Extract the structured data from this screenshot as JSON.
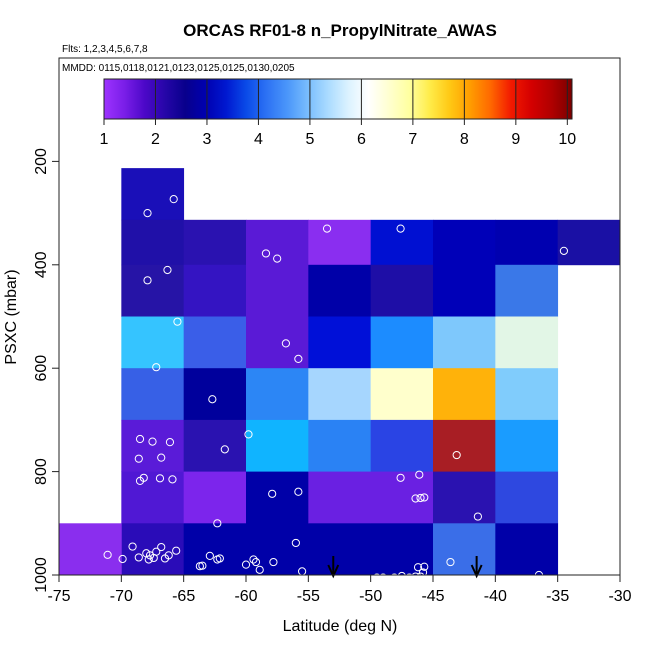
{
  "chart_data": {
    "type": "heatmap",
    "title": "ORCAS RF01-8 n_PropylNitrate_AWAS",
    "flights_label": "Flts: 1,2,3,4,5,6,7,8",
    "mmdd_label": "MMDD: 0115,0118,0121,0123,0125,0125,0130,0205",
    "xlabel": "Latitude (deg N)",
    "ylabel": "PSXC (mbar)",
    "xlim": [
      -75,
      -30
    ],
    "ylim": [
      1000,
      0
    ],
    "x_ticks": [
      -75,
      -70,
      -65,
      -60,
      -55,
      -50,
      -45,
      -40,
      -35,
      -30
    ],
    "x_tick_labels": [
      "-75",
      "-70",
      "-65",
      "-60",
      "-55",
      "-50",
      "-45",
      "-40",
      "-35",
      "-30"
    ],
    "y_ticks": [
      200,
      400,
      600,
      800,
      1000
    ],
    "y_tick_labels": [
      "200",
      "400",
      "600",
      "800",
      "1000"
    ],
    "colorbar": {
      "range": [
        1,
        10
      ],
      "ticks": [
        1,
        2,
        3,
        4,
        5,
        6,
        7,
        8,
        9,
        10
      ],
      "tick_labels": [
        "1",
        "2",
        "3",
        "4",
        "5",
        "6",
        "7",
        "8",
        "9",
        "10"
      ],
      "colors": [
        "#9d33ff",
        "#7a1ee8",
        "#4c08c8",
        "#2606a8",
        "#08008c",
        "#0000b0",
        "#0018d0",
        "#0a4be8",
        "#2d72f4",
        "#4a96fa",
        "#78bcfd",
        "#aadbff",
        "#dbf2ff",
        "#ffffff",
        "#ffffd0",
        "#ffffa0",
        "#ffec4a",
        "#ffc814",
        "#ff9c00",
        "#ff6800",
        "#f21a00",
        "#d40000",
        "#b00000",
        "#7a0000"
      ]
    },
    "cells": [
      {
        "lat": [
          -70,
          -65
        ],
        "p": [
          213,
          313
        ],
        "color": "#1a0fb8"
      },
      {
        "lat": [
          -70,
          -65
        ],
        "p": [
          313,
          400
        ],
        "color": "#2010a8"
      },
      {
        "lat": [
          -70,
          -65
        ],
        "p": [
          400,
          500
        ],
        "color": "#2614a6"
      },
      {
        "lat": [
          -70,
          -65
        ],
        "p": [
          500,
          600
        ],
        "color": "#35c4ff"
      },
      {
        "lat": [
          -70,
          -65
        ],
        "p": [
          600,
          700
        ],
        "color": "#3760e6"
      },
      {
        "lat": [
          -70,
          -65
        ],
        "p": [
          700,
          800
        ],
        "color": "#5a1bd8"
      },
      {
        "lat": [
          -70,
          -65
        ],
        "p": [
          800,
          900
        ],
        "color": "#5018d4"
      },
      {
        "lat": [
          -70,
          -65
        ],
        "p": [
          900,
          1000
        ],
        "color": "#2a0cb8"
      },
      {
        "lat": [
          -75,
          -70
        ],
        "p": [
          900,
          1000
        ],
        "color": "#8a2eee"
      },
      {
        "lat": [
          -65,
          -60
        ],
        "p": [
          313,
          400
        ],
        "color": "#2a12b0"
      },
      {
        "lat": [
          -65,
          -60
        ],
        "p": [
          400,
          500
        ],
        "color": "#3414c2"
      },
      {
        "lat": [
          -65,
          -60
        ],
        "p": [
          500,
          600
        ],
        "color": "#3a5ee8"
      },
      {
        "lat": [
          -65,
          -60
        ],
        "p": [
          600,
          700
        ],
        "color": "#00009c"
      },
      {
        "lat": [
          -65,
          -60
        ],
        "p": [
          700,
          800
        ],
        "color": "#2a12b0"
      },
      {
        "lat": [
          -65,
          -60
        ],
        "p": [
          800,
          900
        ],
        "color": "#7c25ec"
      },
      {
        "lat": [
          -65,
          -60
        ],
        "p": [
          900,
          1000
        ],
        "color": "#0000a8"
      },
      {
        "lat": [
          -60,
          -55
        ],
        "p": [
          313,
          400
        ],
        "color": "#5a1ad6"
      },
      {
        "lat": [
          -60,
          -55
        ],
        "p": [
          400,
          500
        ],
        "color": "#5a1ad6"
      },
      {
        "lat": [
          -60,
          -55
        ],
        "p": [
          500,
          600
        ],
        "color": "#5a1ad6"
      },
      {
        "lat": [
          -60,
          -55
        ],
        "p": [
          600,
          700
        ],
        "color": "#2c86f5"
      },
      {
        "lat": [
          -60,
          -55
        ],
        "p": [
          700,
          800
        ],
        "color": "#10b4ff"
      },
      {
        "lat": [
          -60,
          -55
        ],
        "p": [
          800,
          900
        ],
        "color": "#0000a8"
      },
      {
        "lat": [
          -60,
          -55
        ],
        "p": [
          900,
          1000
        ],
        "color": "#0000a8"
      },
      {
        "lat": [
          -55,
          -50
        ],
        "p": [
          313,
          400
        ],
        "color": "#8a2ef0"
      },
      {
        "lat": [
          -55,
          -50
        ],
        "p": [
          400,
          500
        ],
        "color": "#0000a8"
      },
      {
        "lat": [
          -55,
          -50
        ],
        "p": [
          500,
          600
        ],
        "color": "#0010d8"
      },
      {
        "lat": [
          -55,
          -50
        ],
        "p": [
          600,
          700
        ],
        "color": "#a6d6fe"
      },
      {
        "lat": [
          -55,
          -50
        ],
        "p": [
          700,
          800
        ],
        "color": "#2a82f4"
      },
      {
        "lat": [
          -55,
          -50
        ],
        "p": [
          800,
          900
        ],
        "color": "#6a20e2"
      },
      {
        "lat": [
          -55,
          -50
        ],
        "p": [
          900,
          1000
        ],
        "color": "#0000a8"
      },
      {
        "lat": [
          -50,
          -45
        ],
        "p": [
          313,
          400
        ],
        "color": "#0010d2"
      },
      {
        "lat": [
          -50,
          -45
        ],
        "p": [
          400,
          500
        ],
        "color": "#1e0ea6"
      },
      {
        "lat": [
          -50,
          -45
        ],
        "p": [
          500,
          600
        ],
        "color": "#1c8cff"
      },
      {
        "lat": [
          -50,
          -45
        ],
        "p": [
          600,
          700
        ],
        "color": "#ffffcc"
      },
      {
        "lat": [
          -50,
          -45
        ],
        "p": [
          700,
          800
        ],
        "color": "#2a44e4"
      },
      {
        "lat": [
          -50,
          -45
        ],
        "p": [
          800,
          900
        ],
        "color": "#6a20e2"
      },
      {
        "lat": [
          -50,
          -45
        ],
        "p": [
          900,
          1000
        ],
        "color": "#0000a8"
      },
      {
        "lat": [
          -45,
          -40
        ],
        "p": [
          313,
          400
        ],
        "color": "#0000b8"
      },
      {
        "lat": [
          -45,
          -40
        ],
        "p": [
          400,
          500
        ],
        "color": "#0000b8"
      },
      {
        "lat": [
          -45,
          -40
        ],
        "p": [
          500,
          600
        ],
        "color": "#7ec8fc"
      },
      {
        "lat": [
          -45,
          -40
        ],
        "p": [
          600,
          700
        ],
        "color": "#ffb20a"
      },
      {
        "lat": [
          -45,
          -40
        ],
        "p": [
          700,
          800
        ],
        "color": "#a81e24"
      },
      {
        "lat": [
          -45,
          -40
        ],
        "p": [
          800,
          900
        ],
        "color": "#2a12b0"
      },
      {
        "lat": [
          -45,
          -40
        ],
        "p": [
          900,
          1000
        ],
        "color": "#3a6ee8"
      },
      {
        "lat": [
          -40,
          -35
        ],
        "p": [
          313,
          400
        ],
        "color": "#0000b0"
      },
      {
        "lat": [
          -40,
          -35
        ],
        "p": [
          400,
          500
        ],
        "color": "#3a78e8"
      },
      {
        "lat": [
          -40,
          -35
        ],
        "p": [
          500,
          600
        ],
        "color": "#e2f6e6"
      },
      {
        "lat": [
          -40,
          -35
        ],
        "p": [
          600,
          700
        ],
        "color": "#80ccfc"
      },
      {
        "lat": [
          -40,
          -35
        ],
        "p": [
          700,
          800
        ],
        "color": "#1a9cff"
      },
      {
        "lat": [
          -40,
          -35
        ],
        "p": [
          800,
          900
        ],
        "color": "#2e48e0"
      },
      {
        "lat": [
          -40,
          -35
        ],
        "p": [
          900,
          1000
        ],
        "color": "#0000a8"
      },
      {
        "lat": [
          -35,
          -30
        ],
        "p": [
          313,
          400
        ],
        "color": "#1a10a4"
      }
    ],
    "points": [
      [
        -67.9,
        300
      ],
      [
        -65.8,
        273
      ],
      [
        -67.9,
        430
      ],
      [
        -66.3,
        410
      ],
      [
        -65.5,
        510
      ],
      [
        -67.2,
        598
      ],
      [
        -62.7,
        660
      ],
      [
        -68.5,
        737
      ],
      [
        -67.5,
        742
      ],
      [
        -66.1,
        743
      ],
      [
        -68.6,
        775
      ],
      [
        -66.8,
        773
      ],
      [
        -68.2,
        812
      ],
      [
        -68.5,
        818
      ],
      [
        -66.9,
        813
      ],
      [
        -65.9,
        815
      ],
      [
        -61.7,
        757
      ],
      [
        -59.8,
        728
      ],
      [
        -62.3,
        900
      ],
      [
        -57.9,
        843
      ],
      [
        -55.8,
        839
      ],
      [
        -58.4,
        378
      ],
      [
        -57.5,
        388
      ],
      [
        -56.8,
        552
      ],
      [
        -55.8,
        582
      ],
      [
        -53.5,
        330
      ],
      [
        -47.6,
        330
      ],
      [
        -34.5,
        373
      ],
      [
        -47.6,
        812
      ],
      [
        -46.4,
        852
      ],
      [
        -46.0,
        851
      ],
      [
        -45.7,
        850
      ],
      [
        -46.1,
        806
      ],
      [
        -43.1,
        768
      ],
      [
        -41.4,
        887
      ],
      [
        -43.6,
        975
      ],
      [
        -36.5,
        1000
      ],
      [
        -71.1,
        961
      ],
      [
        -69.9,
        969
      ],
      [
        -69.1,
        945
      ],
      [
        -68.6,
        966
      ],
      [
        -68.0,
        958
      ],
      [
        -67.7,
        962
      ],
      [
        -67.4,
        967
      ],
      [
        -67.8,
        970
      ],
      [
        -67.2,
        955
      ],
      [
        -66.8,
        946
      ],
      [
        -66.2,
        962
      ],
      [
        -65.6,
        953
      ],
      [
        -66.5,
        968
      ],
      [
        -63.7,
        983
      ],
      [
        -63.5,
        982
      ],
      [
        -62.9,
        963
      ],
      [
        -62.3,
        970
      ],
      [
        -62.1,
        968
      ],
      [
        -60.0,
        980
      ],
      [
        -59.4,
        970
      ],
      [
        -58.9,
        990
      ],
      [
        -59.2,
        975
      ],
      [
        -57.8,
        975
      ],
      [
        -56.0,
        938
      ],
      [
        -55.5,
        993
      ],
      [
        -49.5,
        1005
      ],
      [
        -49.0,
        1005
      ],
      [
        -48.5,
        1008
      ],
      [
        -48.1,
        1005
      ],
      [
        -47.5,
        1002
      ],
      [
        -46.9,
        1005
      ],
      [
        -46.4,
        1003
      ],
      [
        -46.0,
        1003
      ],
      [
        -45.8,
        995
      ],
      [
        -46.2,
        985
      ],
      [
        -45.7,
        984
      ]
    ],
    "markers": [
      {
        "lat": -53.0,
        "label": "arrow"
      },
      {
        "lat": -41.5,
        "label": "arrow"
      }
    ]
  }
}
